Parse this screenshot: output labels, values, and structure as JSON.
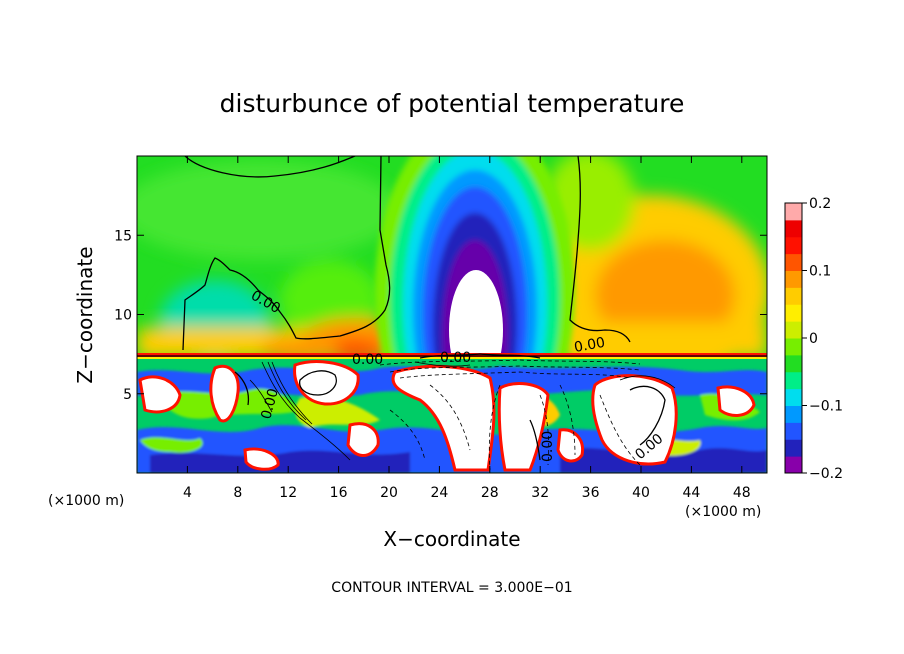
{
  "chart_data": {
    "type": "heatmap",
    "title": "disturbunce of potential temperature",
    "xlabel": "X−coordinate",
    "ylabel": "Z−coordinate",
    "x_unit": "(×1000 m)",
    "y_unit": "(×1000 m)",
    "xlim": [
      0,
      50
    ],
    "ylim": [
      0,
      20
    ],
    "x_ticks": [
      4,
      8,
      12,
      16,
      20,
      24,
      28,
      32,
      36,
      40,
      44,
      48
    ],
    "y_ticks": [
      5,
      10,
      15
    ],
    "colorbar": {
      "range": [
        -0.2,
        0.2
      ],
      "ticks": [
        0.2,
        0.1,
        0,
        -0.1,
        -0.2
      ],
      "tick_labels": [
        "0.2",
        "0.1",
        "0",
        "−0.1",
        "−0.2"
      ],
      "colors": [
        "#8800aa",
        "#2222bb",
        "#2255ff",
        "#0099ff",
        "#00ddee",
        "#00ee88",
        "#22dd22",
        "#77ee00",
        "#ccee00",
        "#ffee00",
        "#ffcc00",
        "#ff9900",
        "#ff5500",
        "#ff1100",
        "#ee0000",
        "#ffaaaa"
      ]
    },
    "contour_labels": [
      "0.00",
      "0.00",
      "0.00",
      "0.00",
      "0.00",
      "0.00",
      "0.00"
    ],
    "note": "CONTOUR INTERVAL = 3.000E−01",
    "grid": false
  }
}
